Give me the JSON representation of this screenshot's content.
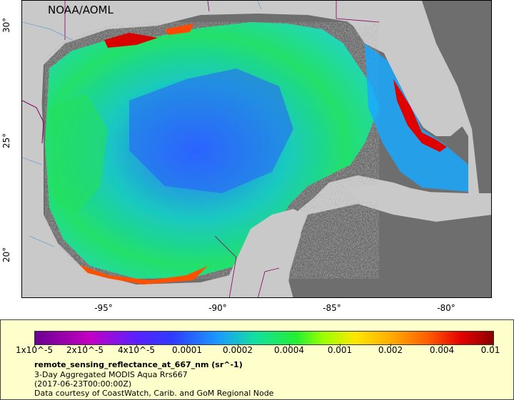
{
  "map": {
    "watermark": "NOAA/AOML",
    "lat_ticks": [
      "30°",
      "25°",
      "20°"
    ],
    "lon_ticks": [
      "-95°",
      "-90°",
      "-85°",
      "-80°"
    ],
    "colors": {
      "land": "#c9c9c9",
      "no_data": "#6e6e6e",
      "borders": "#800060",
      "rivers": "#6fa0d0"
    }
  },
  "legend": {
    "colorbar_ticks": [
      "1x10^-5",
      "2x10^-5",
      "4x10^-5",
      "0.0001",
      "0.0002",
      "0.0004",
      "0.001",
      "0.002",
      "0.004",
      "0.01"
    ],
    "variable": "remote_sensing_reflectance_at_667_nm (sr^-1)",
    "dataset": "3-Day Aggregated MODIS Aqua Rrs667",
    "time": "(2017-06-23T00:00:00Z)",
    "credit": "Data courtesy of CoastWatch, Carib. and GoM Regional Node"
  }
}
